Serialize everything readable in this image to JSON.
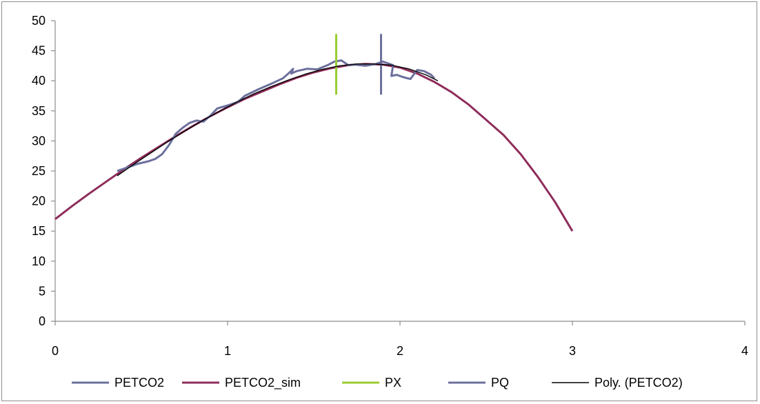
{
  "chart_data": {
    "type": "line",
    "title": "",
    "xlabel": "",
    "ylabel": "",
    "xlim": [
      0,
      4
    ],
    "ylim": [
      0,
      50
    ],
    "x_ticks": [
      0,
      1,
      2,
      3,
      4
    ],
    "y_ticks": [
      0,
      5,
      10,
      15,
      20,
      25,
      30,
      35,
      40,
      45,
      50
    ],
    "grid": false,
    "legend_position": "bottom",
    "series": [
      {
        "name": "PETCO2",
        "color": "#6b6f9c",
        "points": [
          [
            0.36,
            25.0
          ],
          [
            0.42,
            25.6
          ],
          [
            0.48,
            26.2
          ],
          [
            0.54,
            26.6
          ],
          [
            0.58,
            27.0
          ],
          [
            0.62,
            27.8
          ],
          [
            0.66,
            29.3
          ],
          [
            0.7,
            31.2
          ],
          [
            0.74,
            32.2
          ],
          [
            0.78,
            33.0
          ],
          [
            0.82,
            33.4
          ],
          [
            0.86,
            33.2
          ],
          [
            0.9,
            34.2
          ],
          [
            0.94,
            35.4
          ],
          [
            1.0,
            35.9
          ],
          [
            1.06,
            36.5
          ],
          [
            1.1,
            37.5
          ],
          [
            1.18,
            38.6
          ],
          [
            1.26,
            39.6
          ],
          [
            1.32,
            40.4
          ],
          [
            1.36,
            41.4
          ],
          [
            1.38,
            42.0
          ],
          [
            1.37,
            41.2
          ],
          [
            1.4,
            41.6
          ],
          [
            1.46,
            42.0
          ],
          [
            1.52,
            41.9
          ],
          [
            1.58,
            42.6
          ],
          [
            1.62,
            43.2
          ],
          [
            1.66,
            43.4
          ],
          [
            1.7,
            42.6
          ],
          [
            1.74,
            42.7
          ],
          [
            1.8,
            42.5
          ],
          [
            1.86,
            42.8
          ],
          [
            1.9,
            43.2
          ],
          [
            1.92,
            43.0
          ],
          [
            1.96,
            42.6
          ],
          [
            1.95,
            40.8
          ],
          [
            1.98,
            41.0
          ],
          [
            2.02,
            40.6
          ],
          [
            2.06,
            40.3
          ],
          [
            2.1,
            41.8
          ],
          [
            2.14,
            41.6
          ],
          [
            2.18,
            41.0
          ],
          [
            2.2,
            40.4
          ]
        ]
      },
      {
        "name": "PETCO2_sim",
        "color": "#8e2c5a",
        "points": [
          [
            0,
            17.0
          ],
          [
            0.1,
            19.2
          ],
          [
            0.2,
            21.3
          ],
          [
            0.3,
            23.3
          ],
          [
            0.4,
            25.3
          ],
          [
            0.5,
            27.2
          ],
          [
            0.6,
            29.0
          ],
          [
            0.7,
            30.8
          ],
          [
            0.8,
            32.5
          ],
          [
            0.9,
            34.1
          ],
          [
            1.0,
            35.6
          ],
          [
            1.1,
            37.0
          ],
          [
            1.2,
            38.2
          ],
          [
            1.3,
            39.4
          ],
          [
            1.4,
            40.5
          ],
          [
            1.5,
            41.4
          ],
          [
            1.6,
            42.1
          ],
          [
            1.7,
            42.6
          ],
          [
            1.8,
            42.8
          ],
          [
            1.9,
            42.7
          ],
          [
            2.0,
            42.2
          ],
          [
            2.1,
            41.2
          ],
          [
            2.2,
            39.8
          ],
          [
            2.3,
            38.1
          ],
          [
            2.4,
            36.0
          ],
          [
            2.5,
            33.5
          ],
          [
            2.6,
            31.0
          ],
          [
            2.7,
            27.8
          ],
          [
            2.8,
            24.0
          ],
          [
            2.9,
            19.8
          ],
          [
            3.0,
            15.0
          ]
        ]
      },
      {
        "name": "PX",
        "color": "#9acd32",
        "points": [
          [
            1.63,
            37.7
          ],
          [
            1.63,
            47.8
          ]
        ]
      },
      {
        "name": "PQ",
        "color": "#6b6f9c",
        "points": [
          [
            1.89,
            37.7
          ],
          [
            1.89,
            47.8
          ]
        ]
      },
      {
        "name": "Poly. (PETCO2)",
        "color": "#000000",
        "points": [
          [
            0.36,
            24.2
          ],
          [
            0.45,
            26.0
          ],
          [
            0.55,
            27.9
          ],
          [
            0.65,
            29.8
          ],
          [
            0.75,
            31.6
          ],
          [
            0.85,
            33.3
          ],
          [
            0.95,
            34.9
          ],
          [
            1.05,
            36.4
          ],
          [
            1.15,
            37.8
          ],
          [
            1.25,
            39.0
          ],
          [
            1.35,
            40.1
          ],
          [
            1.45,
            41.1
          ],
          [
            1.55,
            41.9
          ],
          [
            1.65,
            42.5
          ],
          [
            1.75,
            42.8
          ],
          [
            1.85,
            42.8
          ],
          [
            1.95,
            42.6
          ],
          [
            2.05,
            42.0
          ],
          [
            2.15,
            41.0
          ],
          [
            2.22,
            40.0
          ]
        ]
      }
    ]
  }
}
